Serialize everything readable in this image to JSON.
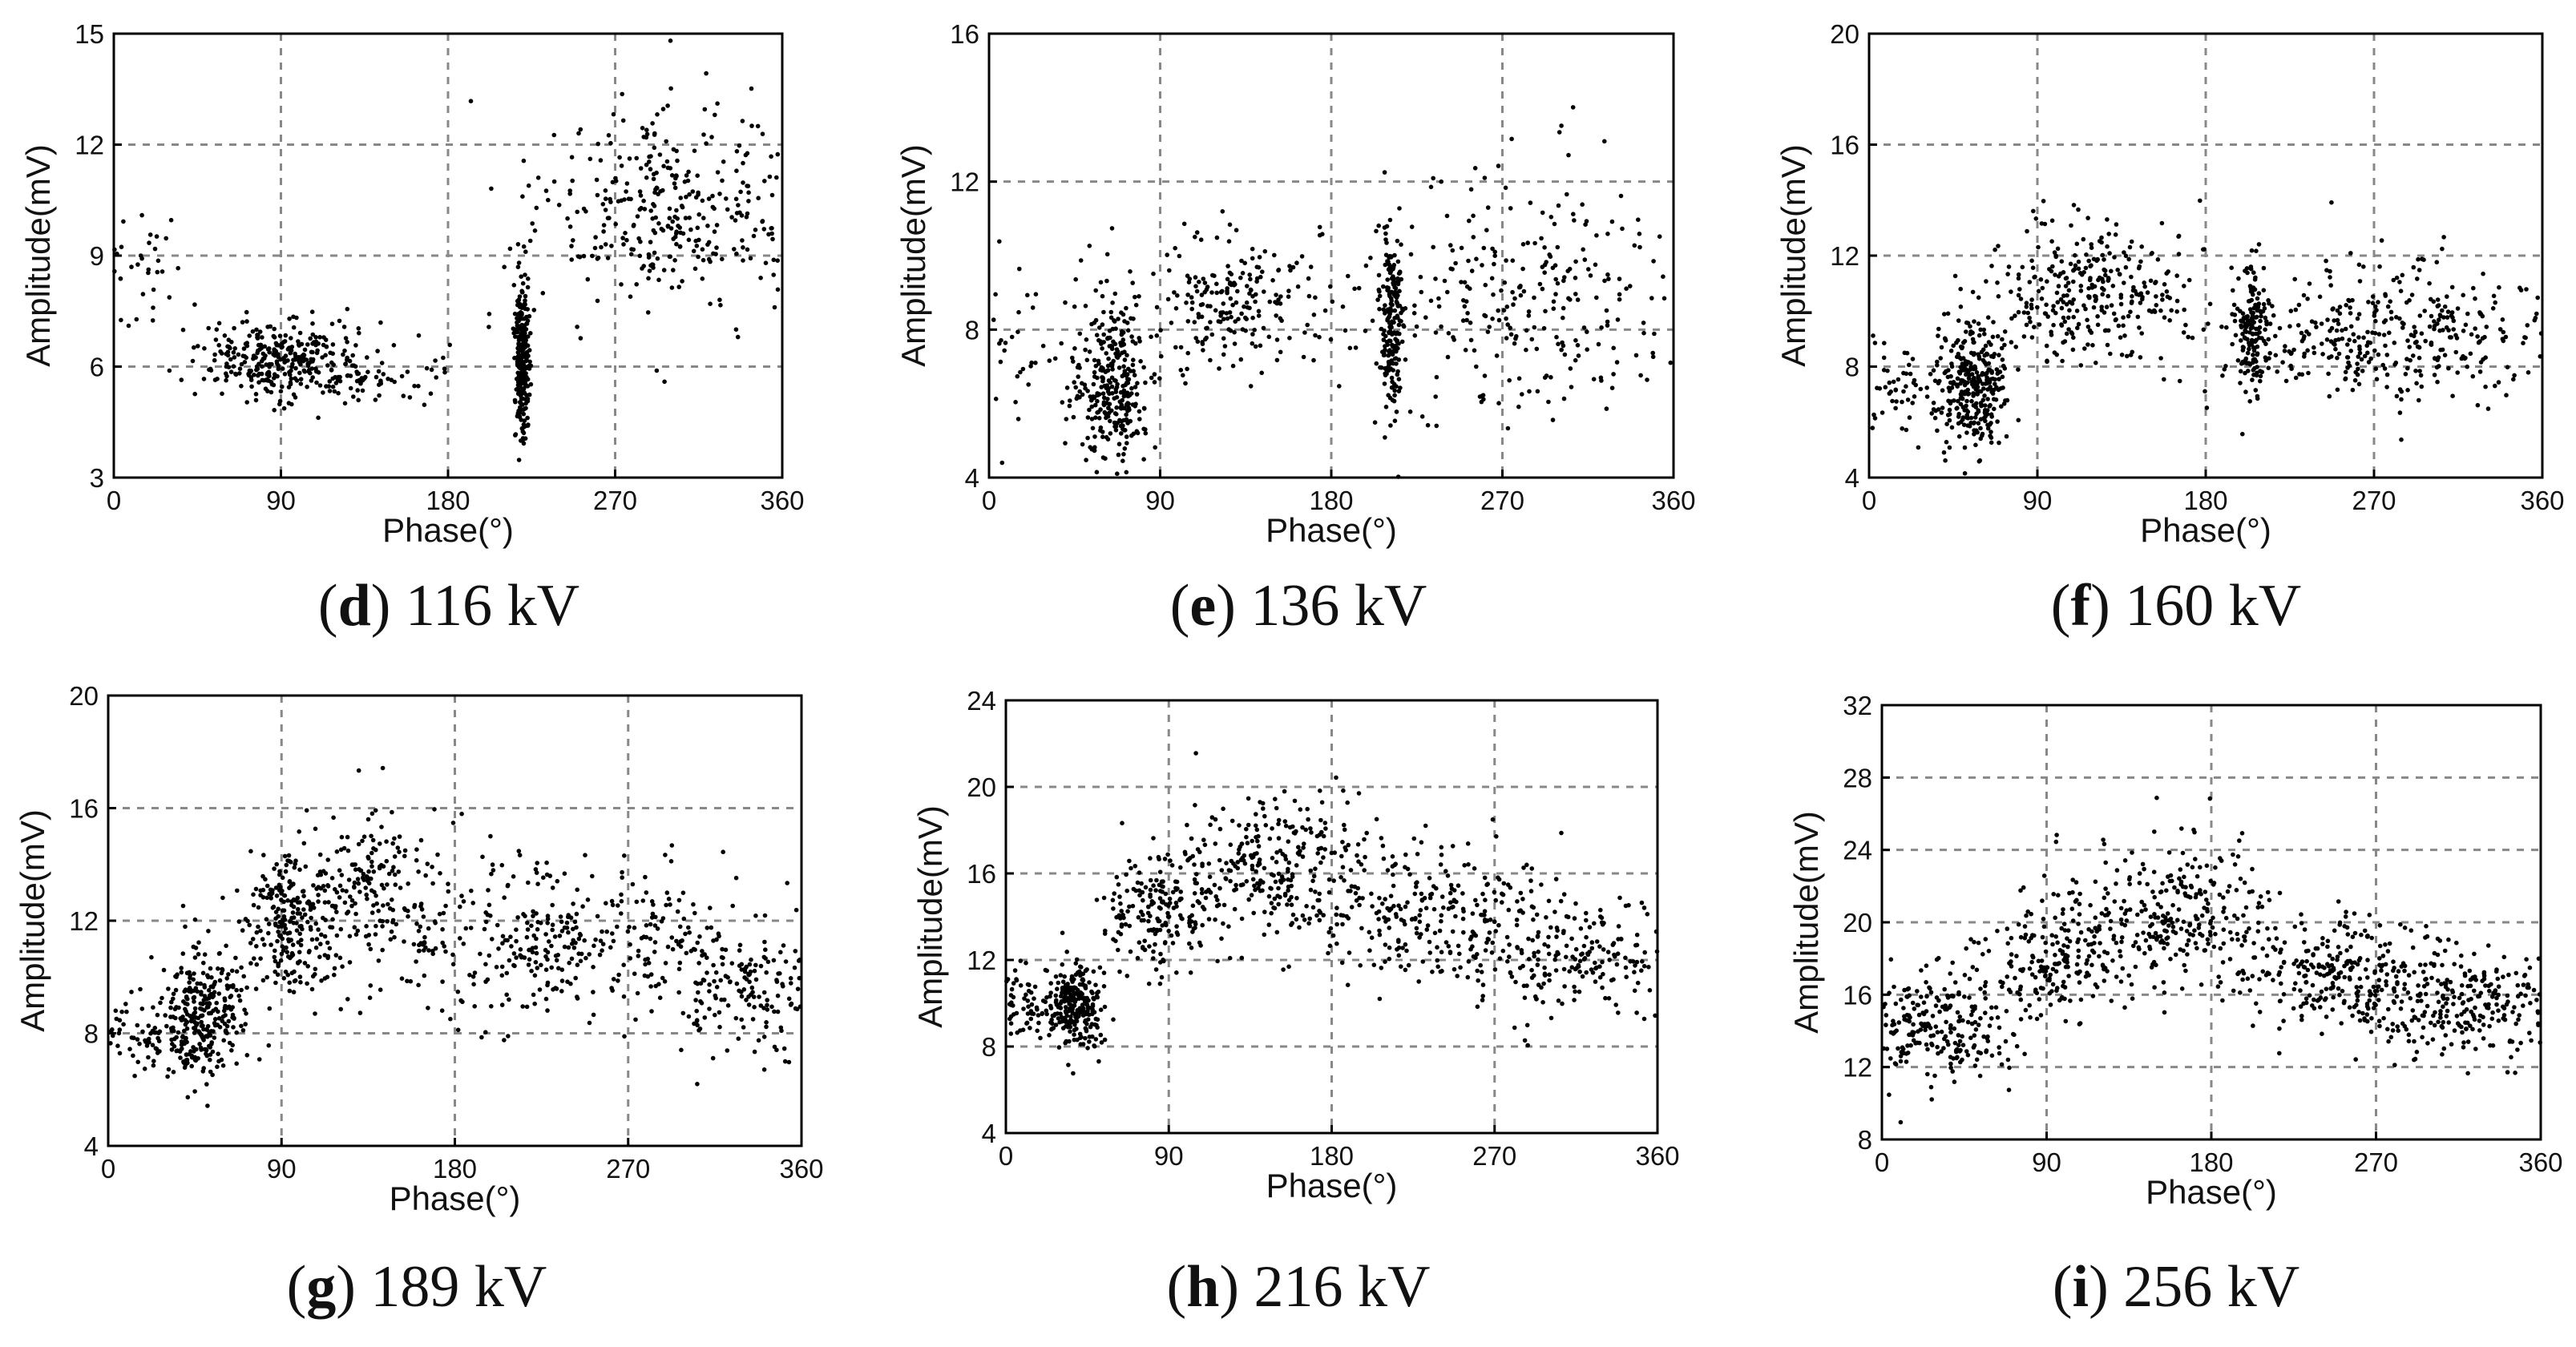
{
  "figure_title": "",
  "chart_data": [
    {
      "id": "d",
      "type": "scatter",
      "caption": {
        "letter": "d",
        "text": " 116 kV"
      },
      "xlabel": "Phase(°)",
      "ylabel": "Amplitude(mV)",
      "xlim": [
        0,
        360
      ],
      "ylim": [
        3,
        15
      ],
      "xticks": [
        0,
        90,
        180,
        270,
        360
      ],
      "yticks": [
        3,
        6,
        9,
        12,
        15
      ],
      "grid": true,
      "clusters": [
        {
          "n": 60,
          "x": [
            2,
            20
          ],
          "y": [
            8.5,
            0.9
          ]
        },
        {
          "n": 320,
          "x": [
            90,
            22
          ],
          "y": [
            6.1,
            0.55
          ]
        },
        {
          "n": 60,
          "x": [
            140,
            25
          ],
          "y": [
            5.7,
            0.5
          ]
        },
        {
          "n": 260,
          "x": [
            220,
            2
          ],
          "y": [
            6.2,
            1.1
          ]
        },
        {
          "n": 360,
          "x": [
            300,
            38
          ],
          "y": [
            10.2,
            1.3
          ]
        }
      ]
    },
    {
      "id": "e",
      "type": "scatter",
      "caption": {
        "letter": "e",
        "text": " 136 kV"
      },
      "xlabel": "Phase(°)",
      "ylabel": "Amplitude(mV)",
      "xlim": [
        0,
        360
      ],
      "ylim": [
        4,
        16
      ],
      "xticks": [
        0,
        90,
        180,
        270,
        360
      ],
      "yticks": [
        4,
        8,
        12,
        16
      ],
      "grid": true,
      "clusters": [
        {
          "n": 50,
          "x": [
            25,
            20
          ],
          "y": [
            7.2,
            1.4
          ]
        },
        {
          "n": 300,
          "x": [
            65,
            9
          ],
          "y": [
            6.6,
            1.1
          ]
        },
        {
          "n": 220,
          "x": [
            130,
            30
          ],
          "y": [
            8.7,
            1.0
          ]
        },
        {
          "n": 200,
          "x": [
            212,
            3
          ],
          "y": [
            8.2,
            1.2
          ]
        },
        {
          "n": 280,
          "x": [
            280,
            45
          ],
          "y": [
            8.8,
            1.7
          ]
        }
      ]
    },
    {
      "id": "f",
      "type": "scatter",
      "caption": {
        "letter": "f",
        "text": " 160 kV"
      },
      "xlabel": "Phase(°)",
      "ylabel": "Amplitude(mV)",
      "xlim": [
        0,
        360
      ],
      "ylim": [
        4,
        20
      ],
      "xticks": [
        0,
        90,
        180,
        270,
        360
      ],
      "yticks": [
        4,
        8,
        12,
        16,
        20
      ],
      "grid": true,
      "clusters": [
        {
          "n": 60,
          "x": [
            20,
            15
          ],
          "y": [
            7.0,
            0.9
          ]
        },
        {
          "n": 320,
          "x": [
            55,
            10
          ],
          "y": [
            7.4,
            1.1
          ]
        },
        {
          "n": 300,
          "x": [
            120,
            25
          ],
          "y": [
            10.8,
            1.3
          ]
        },
        {
          "n": 150,
          "x": [
            205,
            4
          ],
          "y": [
            9.4,
            1.1
          ]
        },
        {
          "n": 400,
          "x": [
            275,
            48
          ],
          "y": [
            9.2,
            1.3
          ]
        }
      ]
    },
    {
      "id": "g",
      "type": "scatter",
      "caption": {
        "letter": "g",
        "text": " 189 kV"
      },
      "xlabel": "Phase(°)",
      "ylabel": "Amplitude(mV)",
      "xlim": [
        0,
        360
      ],
      "ylim": [
        4,
        20
      ],
      "xticks": [
        0,
        90,
        180,
        270,
        360
      ],
      "yticks": [
        4,
        8,
        12,
        16,
        20
      ],
      "grid": true,
      "clusters": [
        {
          "n": 80,
          "x": [
            18,
            14
          ],
          "y": [
            7.9,
            0.6
          ]
        },
        {
          "n": 300,
          "x": [
            48,
            10
          ],
          "y": [
            8.6,
            1.1
          ]
        },
        {
          "n": 240,
          "x": [
            95,
            12
          ],
          "y": [
            11.8,
            1.3
          ]
        },
        {
          "n": 200,
          "x": [
            140,
            20
          ],
          "y": [
            13.2,
            1.4
          ]
        },
        {
          "n": 360,
          "x": [
            240,
            45
          ],
          "y": [
            11.2,
            1.4
          ]
        },
        {
          "n": 160,
          "x": [
            330,
            22
          ],
          "y": [
            9.4,
            1.1
          ]
        }
      ]
    },
    {
      "id": "h",
      "type": "scatter",
      "caption": {
        "letter": "h",
        "text": " 216 kV"
      },
      "xlabel": "Phase(°)",
      "ylabel": "Amplitude(mV)",
      "xlim": [
        0,
        360
      ],
      "ylim": [
        4,
        24
      ],
      "xticks": [
        0,
        90,
        180,
        270,
        360
      ],
      "yticks": [
        4,
        8,
        12,
        16,
        20,
        24
      ],
      "grid": true,
      "clusters": [
        {
          "n": 60,
          "x": [
            10,
            8
          ],
          "y": [
            10.0,
            0.9
          ]
        },
        {
          "n": 260,
          "x": [
            38,
            8
          ],
          "y": [
            9.9,
            1.0
          ]
        },
        {
          "n": 200,
          "x": [
            85,
            15
          ],
          "y": [
            14.2,
            1.6
          ]
        },
        {
          "n": 260,
          "x": [
            150,
            28
          ],
          "y": [
            16.3,
            1.7
          ]
        },
        {
          "n": 260,
          "x": [
            235,
            35
          ],
          "y": [
            14.2,
            1.6
          ]
        },
        {
          "n": 200,
          "x": [
            315,
            30
          ],
          "y": [
            12.0,
            1.4
          ]
        }
      ]
    },
    {
      "id": "i",
      "type": "scatter",
      "caption": {
        "letter": "i",
        "text": " 256 kV"
      },
      "xlabel": "Phase(°)",
      "ylabel": "Amplitude(mV)",
      "xlim": [
        0,
        360
      ],
      "ylim": [
        8,
        32
      ],
      "xticks": [
        0,
        90,
        180,
        270,
        360
      ],
      "yticks": [
        8,
        12,
        16,
        20,
        24,
        28,
        32
      ],
      "grid": true,
      "clusters": [
        {
          "n": 240,
          "x": [
            30,
            20
          ],
          "y": [
            14.2,
            1.6
          ]
        },
        {
          "n": 200,
          "x": [
            95,
            20
          ],
          "y": [
            18.0,
            1.8
          ]
        },
        {
          "n": 280,
          "x": [
            160,
            25
          ],
          "y": [
            20.2,
            2.0
          ]
        },
        {
          "n": 250,
          "x": [
            250,
            28
          ],
          "y": [
            17.2,
            1.6
          ]
        },
        {
          "n": 280,
          "x": [
            320,
            28
          ],
          "y": [
            15.5,
            1.5
          ]
        }
      ]
    }
  ]
}
